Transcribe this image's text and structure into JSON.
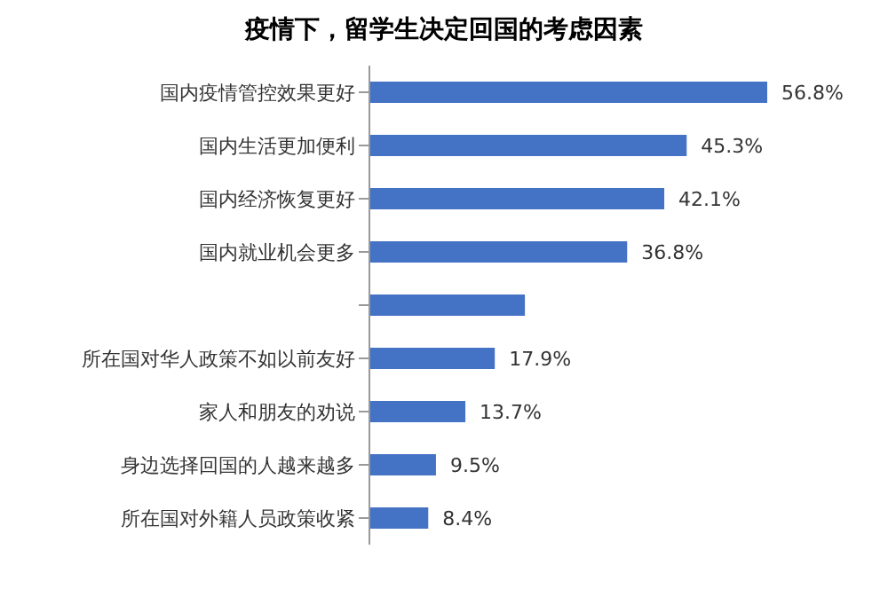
{
  "chart_data": {
    "type": "bar",
    "orientation": "horizontal",
    "title": "疫情下，留学生决定回国的考虑因素",
    "categories": [
      "国内疫情管控效果更好",
      "国内生活更加便利",
      "国内经济恢复更好",
      "国内就业机会更多",
      null,
      "所在国对华人政策不如以前友好",
      "家人和朋友的劝说",
      "身边选择回国的人越来越多",
      "所在国对外籍人员政策收紧"
    ],
    "values": [
      56.8,
      45.3,
      42.1,
      36.8,
      22.2,
      17.9,
      13.7,
      9.5,
      8.4
    ],
    "value_labels": [
      "56.8%",
      "45.3%",
      "42.1%",
      "36.8%",
      null,
      "17.9%",
      "13.7%",
      "9.5%",
      "8.4%"
    ],
    "color": "#4472c4",
    "grid": false
  }
}
